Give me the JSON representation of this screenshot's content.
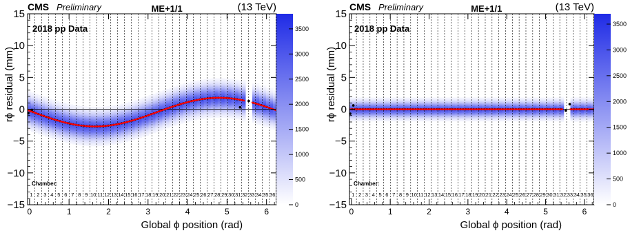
{
  "chart_data": [
    {
      "type": "heatmap",
      "experiment": "CMS",
      "status": "Preliminary",
      "title": "ME+1/1",
      "energy": "(13 TeV)",
      "dataset": "2018 pp Data",
      "xlabel": "Global ϕ position (rad)",
      "ylabel": "rϕ residual (mm)",
      "xlim": [
        -0.05,
        6.25
      ],
      "ylim": [
        -15,
        15
      ],
      "x_ticks": [
        0,
        1,
        2,
        3,
        4,
        5,
        6
      ],
      "y_ticks": [
        -15,
        -10,
        -5,
        0,
        5,
        10,
        15
      ],
      "colorbar": {
        "min": 0,
        "max": 3800,
        "ticks": [
          0,
          500,
          1000,
          1500,
          2000,
          2500,
          3000,
          3500
        ],
        "color_low": "#ffffff",
        "color_high": "#1f2be6"
      },
      "chamber_label": "Chamber:",
      "chambers": [
        "1",
        "2",
        "3",
        "4",
        "5",
        "6",
        "7",
        "8",
        "9",
        "10",
        "11",
        "12",
        "13",
        "14",
        "15",
        "16",
        "17",
        "18",
        "19",
        "20",
        "21",
        "22",
        "23",
        "24",
        "25",
        "26",
        "27",
        "28",
        "29",
        "30",
        "31",
        "32",
        "33",
        "34",
        "35",
        "36"
      ],
      "missing_phi_range": [
        5.45,
        5.62
      ],
      "fit_color": "#ff0000",
      "points_color": "#000000",
      "fit_curve": {
        "form": "offset + amplitude*cos(phi - phase)",
        "offset": -0.45,
        "amplitude": 2.25,
        "phase": 4.8
      },
      "band_halfwidth_mm": 2.5,
      "outlier_points": [
        [
          -0.03,
          -0.6
        ],
        [
          0.06,
          -0.1
        ],
        [
          5.33,
          0.3
        ],
        [
          5.55,
          1.3
        ]
      ]
    },
    {
      "type": "heatmap",
      "experiment": "CMS",
      "status": "Preliminary",
      "title": "ME+1/1",
      "energy": "(13 TeV)",
      "dataset": "2018 pp Data",
      "xlabel": "Global ϕ position (rad)",
      "ylabel": "rϕ residual (mm)",
      "xlim": [
        -0.05,
        6.25
      ],
      "ylim": [
        -15,
        15
      ],
      "x_ticks": [
        0,
        1,
        2,
        3,
        4,
        5,
        6
      ],
      "y_ticks": [
        -15,
        -10,
        -5,
        0,
        5,
        10,
        15
      ],
      "colorbar": {
        "min": 0,
        "max": 3700,
        "ticks": [
          0,
          500,
          1000,
          1500,
          2000,
          2500,
          3000,
          3500
        ],
        "color_low": "#ffffff",
        "color_high": "#1f2be6"
      },
      "chamber_label": "Chamber:",
      "chambers": [
        "1",
        "2",
        "3",
        "4",
        "5",
        "6",
        "7",
        "8",
        "9",
        "10",
        "11",
        "12",
        "13",
        "14",
        "15",
        "16",
        "17",
        "18",
        "19",
        "20",
        "21",
        "22",
        "23",
        "24",
        "25",
        "26",
        "27",
        "28",
        "29",
        "30",
        "31",
        "32",
        "33",
        "34",
        "35",
        "36"
      ],
      "missing_phi_range": [
        5.45,
        5.62
      ],
      "fit_color": "#ff0000",
      "points_color": "#000000",
      "fit_curve": {
        "form": "offset + amplitude*cos(phi - phase)",
        "offset": 0.0,
        "amplitude": 0.0,
        "phase": 0.0
      },
      "band_halfwidth_mm": 1.5,
      "outlier_points": [
        [
          -0.03,
          -0.7
        ],
        [
          0.05,
          0.6
        ],
        [
          5.52,
          -0.2
        ],
        [
          5.62,
          0.8
        ]
      ]
    }
  ]
}
